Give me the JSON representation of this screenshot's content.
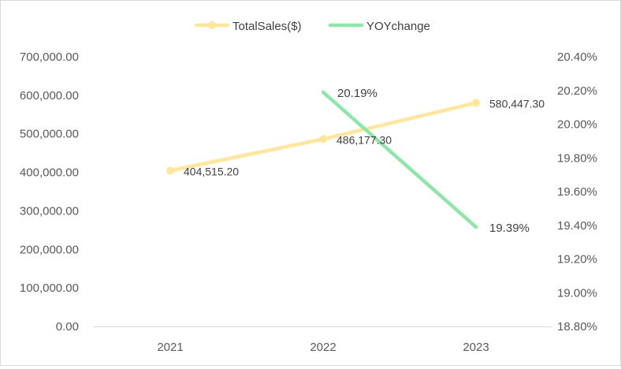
{
  "chart_data": {
    "type": "line",
    "categories": [
      "2021",
      "2022",
      "2023"
    ],
    "series": [
      {
        "name": "TotalSales($)",
        "axis": "left",
        "color": "#FFE699",
        "values": [
          404515.2,
          486177.3,
          580447.3
        ],
        "labels": [
          "404,515.20",
          "486,177.30",
          "580,447.30"
        ]
      },
      {
        "name": "YOYchange",
        "axis": "right",
        "color": "#8CE8A8",
        "values": [
          null,
          20.19,
          19.39
        ],
        "labels": [
          "",
          "20.19%",
          "19.39%"
        ]
      }
    ],
    "y_left": {
      "ylim": [
        0,
        700000
      ],
      "ticks": [
        0,
        100000,
        200000,
        300000,
        400000,
        500000,
        600000,
        700000
      ],
      "tick_labels": [
        "0.00",
        "100,000.00",
        "200,000.00",
        "300,000.00",
        "400,000.00",
        "500,000.00",
        "600,000.00",
        "700,000.00"
      ]
    },
    "y_right": {
      "ylim": [
        18.8,
        20.4
      ],
      "ticks": [
        18.8,
        19.0,
        19.2,
        19.4,
        19.6,
        19.8,
        20.0,
        20.2,
        20.4
      ],
      "tick_labels": [
        "18.80%",
        "19.00%",
        "19.20%",
        "19.40%",
        "19.60%",
        "19.80%",
        "20.00%",
        "20.20%",
        "20.40%"
      ]
    },
    "legend": "top-center",
    "grid": false
  }
}
